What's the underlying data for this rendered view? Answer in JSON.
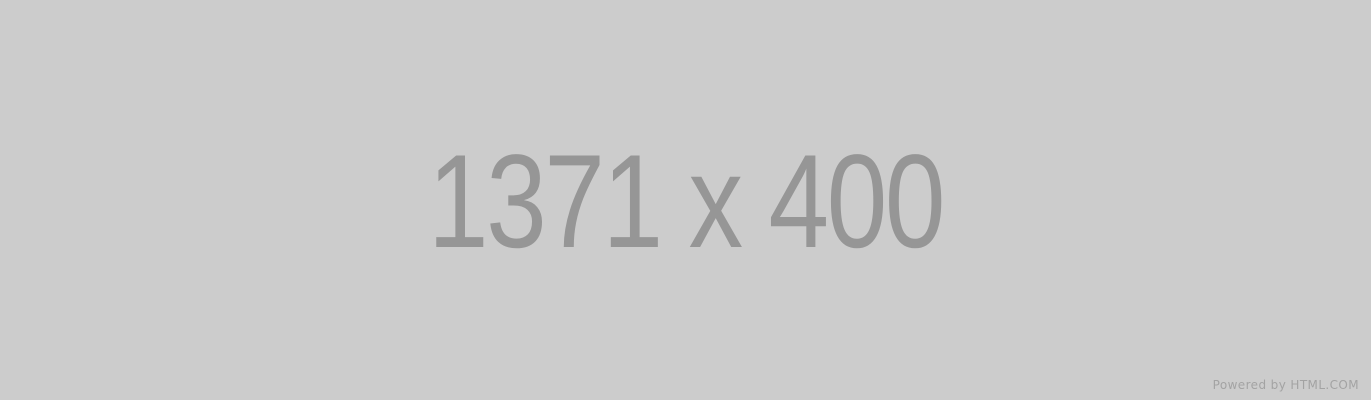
{
  "placeholder": {
    "dimensions_text": "1371 x 400",
    "credit_text": "Powered by HTML.COM",
    "background_color": "#cccccc",
    "text_color": "#969696",
    "credit_color": "#a3a3a3"
  }
}
